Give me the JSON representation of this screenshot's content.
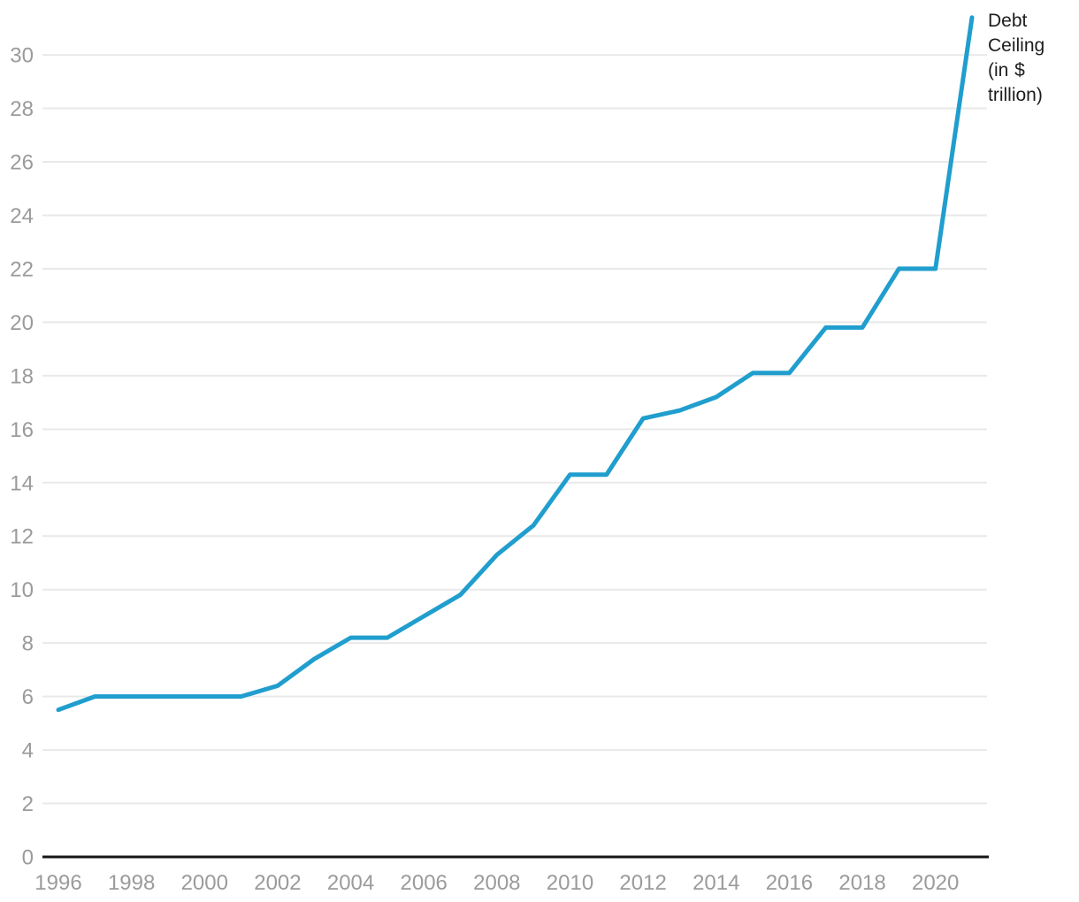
{
  "chart_data": {
    "type": "line",
    "title": "",
    "legend_position": "top-right",
    "grid": "horizontal",
    "xlim": [
      1996,
      2021
    ],
    "ylim": [
      0,
      31.4
    ],
    "x_ticks": [
      1996,
      1998,
      2000,
      2002,
      2004,
      2006,
      2008,
      2010,
      2012,
      2014,
      2016,
      2018,
      2020
    ],
    "y_ticks": [
      0,
      2,
      4,
      6,
      8,
      10,
      12,
      14,
      16,
      18,
      20,
      22,
      24,
      26,
      28,
      30
    ],
    "series": [
      {
        "name": "Debt Ceiling (in $ trillion)",
        "x": [
          1996,
          1997,
          1998,
          1999,
          2000,
          2001,
          2002,
          2003,
          2004,
          2005,
          2006,
          2007,
          2008,
          2009,
          2010,
          2011,
          2012,
          2013,
          2014,
          2015,
          2016,
          2017,
          2018,
          2019,
          2020,
          2021
        ],
        "values": [
          5.5,
          6.0,
          6.0,
          6.0,
          6.0,
          6.0,
          6.4,
          7.4,
          8.2,
          8.2,
          9.0,
          9.8,
          11.3,
          12.4,
          14.3,
          14.3,
          16.4,
          16.7,
          17.2,
          18.1,
          18.1,
          19.8,
          19.8,
          22.0,
          22.0,
          31.4
        ]
      }
    ],
    "colors": {
      "line": "#209ece",
      "grid": "#e9e9e9",
      "tick_label": "#9b9b9b",
      "axis": "#161616",
      "legend_text": "#1d1d1d"
    }
  },
  "legend": {
    "label": "Debt Ceiling (in $ trillion)"
  }
}
